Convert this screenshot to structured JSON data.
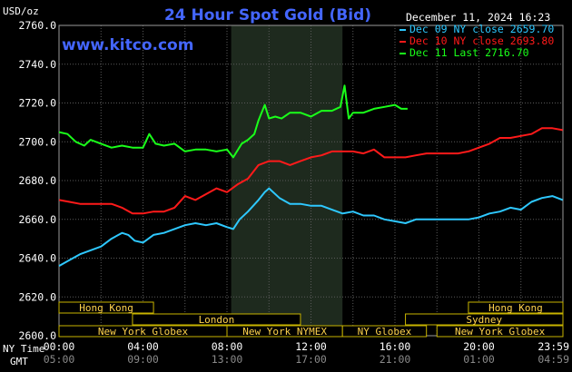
{
  "chart_data": {
    "type": "line",
    "title": "24 Hour Spot Gold (Bid)",
    "unit_label": "USD/oz",
    "timestamp": "December 11, 2024 16:23",
    "site": "www.kitco.com",
    "ylim": [
      2600,
      2760
    ],
    "y_ticks": [
      "2760.0",
      "2740.0",
      "2720.0",
      "2700.0",
      "2680.0",
      "2660.0",
      "2640.0",
      "2620.0",
      "2600.0"
    ],
    "xlim": [
      0,
      24
    ],
    "grid": true,
    "legend_position": "top-right",
    "x_axis": {
      "ny_label": "NY Time",
      "gmt_label": "GMT",
      "ny_ticks": [
        "00:00",
        "04:00",
        "08:00",
        "12:00",
        "16:00",
        "20:00",
        "23:59"
      ],
      "gmt_ticks": [
        "05:00",
        "09:00",
        "13:00",
        "17:00",
        "21:00",
        "01:00",
        "04:59"
      ],
      "tick_hours": [
        0,
        4,
        8,
        12,
        16,
        20,
        24
      ]
    },
    "nymex_session_hours": [
      8.2,
      13.5
    ],
    "series": [
      {
        "name": "Dec 09 NY close 2659.70",
        "color": "#2ec8ff",
        "x": [
          0,
          0.5,
          1,
          1.5,
          2,
          2.5,
          3,
          3.3,
          3.6,
          4,
          4.5,
          5,
          5.5,
          6,
          6.5,
          7,
          7.5,
          8,
          8.3,
          8.6,
          9,
          9.5,
          9.8,
          10,
          10.5,
          11,
          11.5,
          12,
          12.5,
          13,
          13.5,
          14,
          14.5,
          15,
          15.5,
          16,
          16.5,
          17,
          17.5,
          18,
          18.5,
          19,
          19.5,
          20,
          20.5,
          21,
          21.5,
          22,
          22.5,
          23,
          23.5,
          23.99
        ],
        "values": [
          2636,
          2639,
          2642,
          2644,
          2646,
          2650,
          2653,
          2652,
          2649,
          2648,
          2652,
          2653,
          2655,
          2657,
          2658,
          2657,
          2658,
          2656,
          2655,
          2660,
          2664,
          2670,
          2674,
          2676,
          2671,
          2668,
          2668,
          2667,
          2667,
          2665,
          2663,
          2664,
          2662,
          2662,
          2660,
          2659,
          2658,
          2660,
          2660,
          2660,
          2660,
          2660,
          2660,
          2661,
          2663,
          2664,
          2666,
          2665,
          2669,
          2671,
          2672,
          2670
        ]
      },
      {
        "name": "Dec 10 NY close 2693.80",
        "color": "#ff1a1a",
        "x": [
          0,
          0.5,
          1,
          1.5,
          2,
          2.5,
          3,
          3.5,
          4,
          4.5,
          5,
          5.5,
          6,
          6.5,
          7,
          7.5,
          8,
          8.5,
          9,
          9.5,
          10,
          10.5,
          11,
          11.5,
          12,
          12.5,
          13,
          13.5,
          14,
          14.5,
          15,
          15.5,
          16,
          16.5,
          17,
          17.5,
          18,
          18.5,
          19,
          19.5,
          20,
          20.5,
          21,
          21.5,
          22,
          22.5,
          23,
          23.5,
          23.99
        ],
        "values": [
          2670,
          2669,
          2668,
          2668,
          2668,
          2668,
          2666,
          2663,
          2663,
          2664,
          2664,
          2666,
          2672,
          2670,
          2673,
          2676,
          2674,
          2678,
          2681,
          2688,
          2690,
          2690,
          2688,
          2690,
          2692,
          2693,
          2695,
          2695,
          2695,
          2694,
          2696,
          2692,
          2692,
          2692,
          2693,
          2694,
          2694,
          2694,
          2694,
          2695,
          2697,
          2699,
          2702,
          2702,
          2703,
          2704,
          2707,
          2707,
          2706
        ]
      },
      {
        "name": "Dec 11 Last 2716.70",
        "color": "#1aff1a",
        "x": [
          0,
          0.4,
          0.8,
          1.2,
          1.5,
          2,
          2.5,
          3,
          3.5,
          4,
          4.3,
          4.6,
          5,
          5.5,
          6,
          6.5,
          7,
          7.5,
          8,
          8.3,
          8.7,
          9,
          9.3,
          9.5,
          9.8,
          10,
          10.3,
          10.6,
          11,
          11.5,
          12,
          12.5,
          13,
          13.4,
          13.6,
          13.8,
          14,
          14.5,
          15,
          15.5,
          16,
          16.3,
          16.6
        ],
        "values": [
          2705,
          2704,
          2700,
          2698,
          2701,
          2699,
          2697,
          2698,
          2697,
          2697,
          2704,
          2699,
          2698,
          2699,
          2695,
          2696,
          2696,
          2695,
          2696,
          2692,
          2699,
          2701,
          2704,
          2711,
          2719,
          2712,
          2713,
          2712,
          2715,
          2715,
          2713,
          2716,
          2716,
          2718,
          2729,
          2712,
          2715,
          2715,
          2717,
          2718,
          2719,
          2717,
          2717
        ]
      }
    ],
    "markets": [
      {
        "label": "Hong Kong",
        "start": 0,
        "end": 4.5,
        "row": 0
      },
      {
        "label": "London",
        "start": 3.5,
        "end": 11.5,
        "row": 1
      },
      {
        "label": "New York Globex",
        "start": 0,
        "end": 8,
        "row": 2
      },
      {
        "label": "New York NYMEX",
        "start": 8,
        "end": 13.5,
        "row": 2
      },
      {
        "label": "NY Globex",
        "start": 13.5,
        "end": 17.5,
        "row": 2
      },
      {
        "label": "Hong Kong",
        "start": 19.5,
        "end": 24,
        "row": 0
      },
      {
        "label": "Sydney",
        "start": 16.5,
        "end": 24,
        "row": 1
      },
      {
        "label": "New York Globex",
        "start": 18,
        "end": 24,
        "row": 2
      }
    ]
  }
}
